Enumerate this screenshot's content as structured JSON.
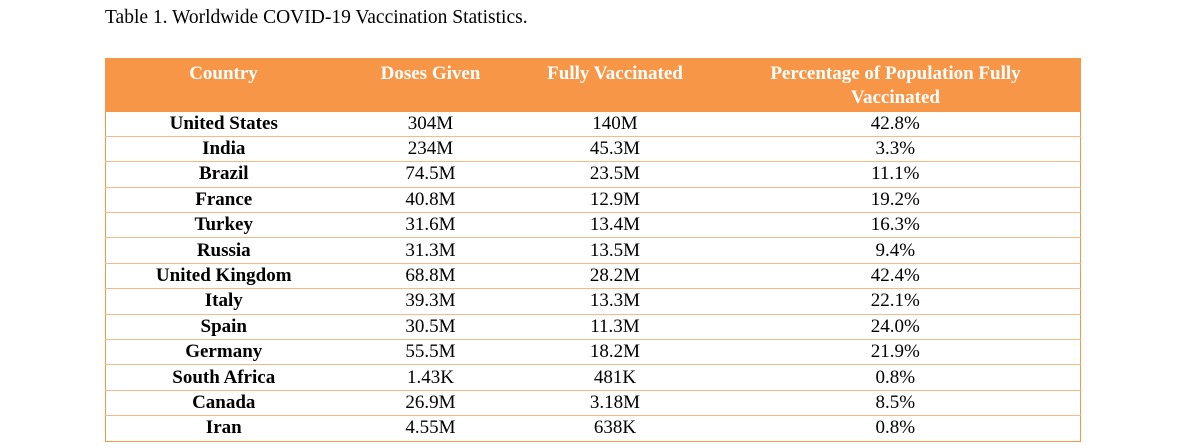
{
  "caption": "Table 1. Worldwide COVID-19 Vaccination Statistics.",
  "colors": {
    "header_background": "#f79646",
    "header_text": "#ffffff",
    "row_border": "#f7b98a"
  },
  "table": {
    "headers": {
      "country": "Country",
      "doses": "Doses Given",
      "fully": "Fully Vaccinated",
      "percentage": "Percentage of Population Fully Vaccinated"
    },
    "rows": [
      {
        "country": "United States",
        "doses": "304M",
        "fully": "140M",
        "percentage": "42.8%"
      },
      {
        "country": "India",
        "doses": "234M",
        "fully": "45.3M",
        "percentage": "3.3%"
      },
      {
        "country": "Brazil",
        "doses": "74.5M",
        "fully": "23.5M",
        "percentage": "11.1%"
      },
      {
        "country": "France",
        "doses": "40.8M",
        "fully": "12.9M",
        "percentage": "19.2%"
      },
      {
        "country": "Turkey",
        "doses": "31.6M",
        "fully": "13.4M",
        "percentage": "16.3%"
      },
      {
        "country": "Russia",
        "doses": "31.3M",
        "fully": "13.5M",
        "percentage": "9.4%"
      },
      {
        "country": "United Kingdom",
        "doses": "68.8M",
        "fully": "28.2M",
        "percentage": "42.4%"
      },
      {
        "country": "Italy",
        "doses": "39.3M",
        "fully": "13.3M",
        "percentage": "22.1%"
      },
      {
        "country": "Spain",
        "doses": "30.5M",
        "fully": "11.3M",
        "percentage": "24.0%"
      },
      {
        "country": "Germany",
        "doses": "55.5M",
        "fully": "18.2M",
        "percentage": "21.9%"
      },
      {
        "country": "South Africa",
        "doses": "1.43K",
        "fully": "481K",
        "percentage": "0.8%"
      },
      {
        "country": "Canada",
        "doses": "26.9M",
        "fully": "3.18M",
        "percentage": "8.5%"
      },
      {
        "country": "Iran",
        "doses": "4.55M",
        "fully": "638K",
        "percentage": "0.8%"
      }
    ]
  }
}
